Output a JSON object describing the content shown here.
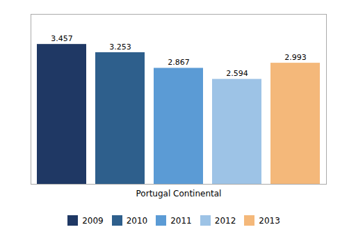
{
  "chart_data": {
    "type": "bar",
    "categories": [
      "Portugal Continental"
    ],
    "series": [
      {
        "name": "2009",
        "color": "#1F3864",
        "values": [
          3.457
        ]
      },
      {
        "name": "2010",
        "color": "#2E5F8C",
        "values": [
          3.253
        ]
      },
      {
        "name": "2011",
        "color": "#5B9BD5",
        "values": [
          2.867
        ]
      },
      {
        "name": "2012",
        "color": "#9DC3E6",
        "values": [
          2.594
        ]
      },
      {
        "name": "2013",
        "color": "#F4B87A",
        "values": [
          2.993
        ]
      }
    ],
    "ylim": [
      0,
      4.2
    ],
    "grid": false,
    "legend": "bottom",
    "data_labels": true,
    "tick_labels": "x"
  }
}
